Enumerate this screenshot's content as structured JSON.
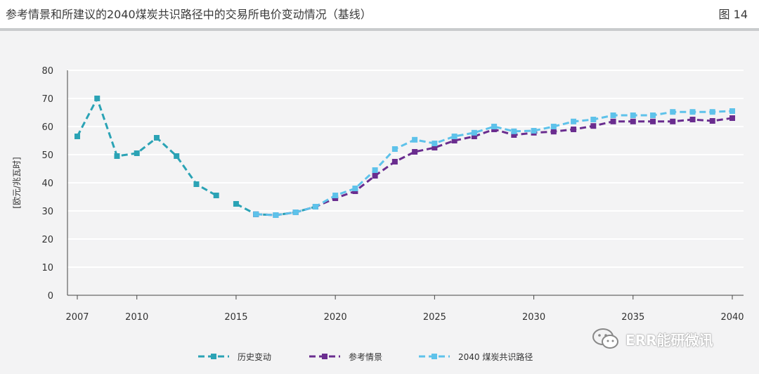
{
  "header": {
    "title": "参考情景和所建议的2040煤炭共识路径中的交易所电价变动情况（基线）",
    "figure_label": "图 14"
  },
  "watermark": {
    "text": "ERR能研微讯",
    "icon": "wechat-icon"
  },
  "colors": {
    "historical": "#2ba3b5",
    "reference": "#6a2d8f",
    "coal_path": "#5ec2ea",
    "grid": "#ffffff",
    "plot_bg": "#f3f3f4"
  },
  "chart_data": {
    "type": "line",
    "title": "参考情景和所建议的2040煤炭共识路径中的交易所电价变动情况（基线）",
    "ylabel": "[欧元/兆瓦时]",
    "xlabel": "",
    "xlim": [
      2007,
      2040
    ],
    "ylim": [
      0,
      80
    ],
    "xticks": [
      2007,
      2010,
      2015,
      2020,
      2025,
      2030,
      2035,
      2040
    ],
    "yticks": [
      0,
      10,
      20,
      30,
      40,
      50,
      60,
      70,
      80
    ],
    "grid": true,
    "legend_position": "bottom",
    "series": [
      {
        "name": "历史变动",
        "segments": [
          [
            [
              2007,
              56.5
            ],
            [
              2008,
              70
            ],
            [
              2009,
              49.5
            ],
            [
              2010,
              50.5
            ],
            [
              2011,
              56
            ],
            [
              2012,
              49.5
            ],
            [
              2013,
              39.5
            ],
            [
              2014,
              35.5
            ]
          ],
          [
            [
              2015,
              32.5
            ],
            [
              2016,
              28.8
            ],
            [
              2017,
              28.5
            ],
            [
              2018,
              29.5
            ],
            [
              2019,
              31.5
            ]
          ]
        ]
      },
      {
        "name": "参考情景",
        "segments": [
          [
            [
              2016,
              28.8
            ],
            [
              2017,
              28.5
            ],
            [
              2018,
              29.5
            ],
            [
              2019,
              31.5
            ],
            [
              2020,
              34.5
            ],
            [
              2021,
              37
            ],
            [
              2022,
              42.5
            ],
            [
              2023,
              47.5
            ],
            [
              2024,
              51
            ],
            [
              2025,
              52.5
            ],
            [
              2026,
              55
            ],
            [
              2027,
              56.5
            ],
            [
              2028,
              59
            ],
            [
              2029,
              57
            ],
            [
              2030,
              57.8
            ],
            [
              2031,
              58.2
            ],
            [
              2032,
              59
            ],
            [
              2033,
              60.2
            ],
            [
              2034,
              61.8
            ],
            [
              2035,
              61.8
            ],
            [
              2036,
              61.8
            ],
            [
              2037,
              61.8
            ],
            [
              2038,
              62.5
            ],
            [
              2039,
              62
            ],
            [
              2040,
              63
            ]
          ]
        ]
      },
      {
        "name": "2040 煤炭共识路径",
        "segments": [
          [
            [
              2016,
              28.8
            ],
            [
              2017,
              28.5
            ],
            [
              2018,
              29.5
            ],
            [
              2019,
              31.5
            ],
            [
              2020,
              35.5
            ],
            [
              2021,
              38
            ],
            [
              2022,
              44.5
            ],
            [
              2023,
              52
            ],
            [
              2024,
              55.3
            ],
            [
              2025,
              54
            ],
            [
              2026,
              56.5
            ],
            [
              2027,
              57.8
            ],
            [
              2028,
              60
            ],
            [
              2029,
              58.3
            ],
            [
              2030,
              58.5
            ],
            [
              2031,
              60
            ],
            [
              2032,
              61.8
            ],
            [
              2033,
              62.5
            ],
            [
              2034,
              64
            ],
            [
              2035,
              64
            ],
            [
              2036,
              64
            ],
            [
              2037,
              65.2
            ],
            [
              2038,
              65.2
            ],
            [
              2039,
              65.2
            ],
            [
              2040,
              65.5
            ]
          ]
        ]
      }
    ]
  }
}
